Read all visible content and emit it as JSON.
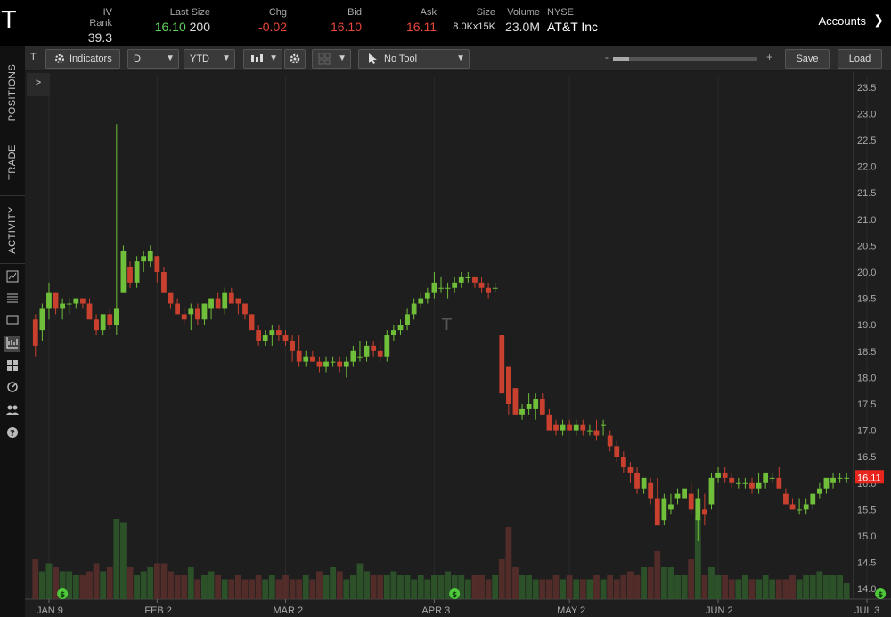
{
  "quote": {
    "symbol": "T",
    "iv_rank_label": "IV Rank",
    "iv_rank": "39.3",
    "last_size_label": "Last Size",
    "last_price": "16.10",
    "last_size": "200",
    "chg_label": "Chg",
    "chg": "-0.02",
    "bid_label": "Bid",
    "bid": "16.10",
    "ask_label": "Ask",
    "ask": "16.11",
    "size_label": "Size",
    "size": "8.0Kx15K",
    "volume_label": "Volume",
    "volume": "23.0M",
    "exchange": "NYSE",
    "company": "AT&T Inc",
    "accounts_label": "Accounts"
  },
  "sidebar": {
    "tabs": [
      "POSITIONS",
      "TRADE",
      "ACTIVITY"
    ],
    "icons": [
      "chart-small-icon",
      "list-icon",
      "tv-icon",
      "chart-icon",
      "grid-icon",
      "refresh-icon",
      "people-icon",
      "help-icon"
    ]
  },
  "toolbar": {
    "symbol": "T",
    "indicators_label": "Indicators",
    "period": "D",
    "range": "YTD",
    "tool_label": "No Tool",
    "zoom_minus": "-",
    "zoom_plus": "+",
    "save_label": "Save",
    "load_label": "Load",
    "expander": ">"
  },
  "chart_data": {
    "type": "candlestick",
    "ylim": [
      13.8,
      23.7
    ],
    "y_ticks": [
      "23.5",
      "23.0",
      "22.5",
      "22.0",
      "21.5",
      "21.0",
      "20.5",
      "20.0",
      "19.5",
      "19.0",
      "18.5",
      "18.0",
      "17.5",
      "17.0",
      "16.5",
      "16.0",
      "15.5",
      "15.0",
      "14.5",
      "14.0"
    ],
    "x_ticks": [
      {
        "label": "JAN 9",
        "i": 2
      },
      {
        "label": "FEB 2",
        "i": 18
      },
      {
        "label": "MAR 2",
        "i": 37
      },
      {
        "label": "APR 3",
        "i": 59
      },
      {
        "label": "MAY 2",
        "i": 79
      },
      {
        "label": "JUN 2",
        "i": 101
      },
      {
        "label": "JUL 3",
        "i": 123
      }
    ],
    "last_price_tag": "16.11",
    "watermark": "T",
    "dividend_markers": [
      4,
      62,
      125
    ],
    "candles": [
      [
        19.1,
        19.2,
        18.4,
        18.6,
        0.1
      ],
      [
        18.9,
        19.4,
        18.7,
        19.3,
        0.07
      ],
      [
        19.3,
        19.8,
        19.1,
        19.6,
        0.09
      ],
      [
        19.6,
        19.6,
        19.2,
        19.3,
        0.08
      ],
      [
        19.3,
        19.5,
        19.1,
        19.4,
        0.07
      ],
      [
        19.4,
        19.5,
        19.2,
        19.4,
        0.07
      ],
      [
        19.4,
        19.5,
        19.3,
        19.5,
        0.06
      ],
      [
        19.5,
        19.5,
        19.3,
        19.4,
        0.06
      ],
      [
        19.4,
        19.5,
        19.1,
        19.1,
        0.07
      ],
      [
        19.1,
        19.2,
        18.8,
        18.9,
        0.09
      ],
      [
        18.9,
        19.2,
        18.8,
        19.2,
        0.07
      ],
      [
        19.2,
        19.3,
        18.9,
        19.0,
        0.08
      ],
      [
        19.0,
        22.8,
        18.8,
        19.3,
        0.2
      ],
      [
        19.6,
        20.5,
        19.6,
        20.4,
        0.19
      ],
      [
        20.1,
        20.2,
        19.7,
        19.8,
        0.08
      ],
      [
        19.8,
        20.3,
        19.7,
        20.2,
        0.06
      ],
      [
        20.2,
        20.4,
        20.0,
        20.3,
        0.07
      ],
      [
        20.2,
        20.5,
        20.1,
        20.4,
        0.08
      ],
      [
        20.3,
        20.3,
        19.8,
        20.0,
        0.09
      ],
      [
        20.0,
        20.1,
        19.6,
        19.6,
        0.09
      ],
      [
        19.6,
        19.6,
        19.3,
        19.4,
        0.07
      ],
      [
        19.4,
        19.5,
        19.2,
        19.2,
        0.06
      ],
      [
        19.2,
        19.3,
        19.0,
        19.1,
        0.06
      ],
      [
        19.2,
        19.4,
        18.9,
        19.3,
        0.08
      ],
      [
        19.3,
        19.4,
        19.0,
        19.1,
        0.05
      ],
      [
        19.1,
        19.4,
        19.0,
        19.4,
        0.06
      ],
      [
        19.3,
        19.5,
        19.1,
        19.5,
        0.07
      ],
      [
        19.5,
        19.6,
        19.3,
        19.3,
        0.06
      ],
      [
        19.3,
        19.7,
        19.2,
        19.6,
        0.05
      ],
      [
        19.6,
        19.7,
        19.4,
        19.4,
        0.05
      ],
      [
        19.5,
        19.5,
        19.2,
        19.4,
        0.06
      ],
      [
        19.4,
        19.4,
        19.1,
        19.2,
        0.05
      ],
      [
        19.2,
        19.2,
        18.9,
        18.9,
        0.05
      ],
      [
        18.9,
        19.0,
        18.6,
        18.7,
        0.06
      ],
      [
        18.7,
        18.9,
        18.6,
        18.8,
        0.05
      ],
      [
        18.8,
        19.0,
        18.6,
        18.9,
        0.06
      ],
      [
        18.9,
        19.0,
        18.7,
        18.8,
        0.05
      ],
      [
        18.8,
        18.9,
        18.6,
        18.7,
        0.06
      ],
      [
        18.7,
        18.8,
        18.3,
        18.5,
        0.05
      ],
      [
        18.5,
        18.8,
        18.2,
        18.3,
        0.05
      ],
      [
        18.3,
        18.5,
        18.2,
        18.4,
        0.06
      ],
      [
        18.4,
        18.5,
        18.3,
        18.3,
        0.05
      ],
      [
        18.3,
        18.4,
        18.1,
        18.2,
        0.07
      ],
      [
        18.2,
        18.4,
        18.1,
        18.3,
        0.06
      ],
      [
        18.3,
        18.4,
        18.2,
        18.3,
        0.08
      ],
      [
        18.3,
        18.4,
        18.1,
        18.2,
        0.07
      ],
      [
        18.2,
        18.4,
        18.0,
        18.3,
        0.05
      ],
      [
        18.3,
        18.6,
        18.2,
        18.5,
        0.06
      ],
      [
        18.4,
        18.7,
        18.3,
        18.4,
        0.09
      ],
      [
        18.4,
        18.7,
        18.3,
        18.6,
        0.07
      ],
      [
        18.6,
        18.7,
        18.4,
        18.5,
        0.06
      ],
      [
        18.5,
        18.7,
        18.3,
        18.4,
        0.06
      ],
      [
        18.4,
        18.9,
        18.3,
        18.8,
        0.06
      ],
      [
        18.8,
        19.0,
        18.7,
        18.9,
        0.07
      ],
      [
        18.9,
        19.1,
        18.8,
        19.0,
        0.06
      ],
      [
        19.0,
        19.3,
        18.9,
        19.2,
        0.06
      ],
      [
        19.2,
        19.5,
        19.1,
        19.4,
        0.05
      ],
      [
        19.4,
        19.6,
        19.3,
        19.5,
        0.06
      ],
      [
        19.5,
        19.7,
        19.4,
        19.6,
        0.05
      ],
      [
        19.6,
        20.0,
        19.5,
        19.8,
        0.06
      ],
      [
        19.7,
        19.9,
        19.6,
        19.7,
        0.06
      ],
      [
        19.7,
        19.8,
        19.5,
        19.7,
        0.07
      ],
      [
        19.7,
        19.9,
        19.6,
        19.8,
        0.06
      ],
      [
        19.8,
        20.0,
        19.7,
        19.9,
        0.06
      ],
      [
        19.9,
        20.0,
        19.8,
        19.9,
        0.05
      ],
      [
        19.9,
        19.9,
        19.7,
        19.8,
        0.06
      ],
      [
        19.8,
        19.9,
        19.6,
        19.7,
        0.06
      ],
      [
        19.7,
        19.8,
        19.5,
        19.6,
        0.05
      ],
      [
        19.7,
        19.8,
        19.6,
        19.7,
        0.06
      ],
      [
        18.8,
        18.8,
        17.7,
        17.7,
        0.1
      ],
      [
        18.2,
        18.2,
        17.3,
        17.5,
        0.18
      ],
      [
        17.8,
        17.8,
        17.3,
        17.3,
        0.08
      ],
      [
        17.3,
        17.5,
        17.2,
        17.4,
        0.06
      ],
      [
        17.4,
        17.7,
        17.3,
        17.5,
        0.06
      ],
      [
        17.4,
        17.7,
        17.2,
        17.6,
        0.05
      ],
      [
        17.6,
        17.7,
        17.3,
        17.3,
        0.05
      ],
      [
        17.3,
        17.4,
        17.0,
        17.0,
        0.05
      ],
      [
        17.1,
        17.2,
        16.9,
        17.0,
        0.06
      ],
      [
        17.0,
        17.2,
        16.9,
        17.1,
        0.05
      ],
      [
        17.1,
        17.2,
        17.0,
        17.0,
        0.06
      ],
      [
        17.0,
        17.2,
        16.9,
        17.1,
        0.05
      ],
      [
        17.1,
        17.2,
        16.9,
        17.0,
        0.05
      ],
      [
        17.0,
        17.1,
        16.9,
        17.0,
        0.05
      ],
      [
        17.0,
        17.2,
        16.8,
        16.9,
        0.06
      ],
      [
        17.1,
        17.2,
        16.9,
        17.1,
        0.05
      ],
      [
        16.9,
        17.0,
        16.6,
        16.7,
        0.06
      ],
      [
        16.7,
        16.8,
        16.4,
        16.5,
        0.05
      ],
      [
        16.5,
        16.6,
        16.2,
        16.3,
        0.06
      ],
      [
        16.3,
        16.4,
        16.0,
        16.2,
        0.07
      ],
      [
        16.2,
        16.3,
        15.8,
        15.9,
        0.06
      ],
      [
        15.9,
        16.1,
        15.8,
        16.1,
        0.08
      ],
      [
        16.0,
        16.1,
        15.6,
        15.7,
        0.08
      ],
      [
        15.7,
        16.1,
        15.2,
        15.2,
        0.12
      ],
      [
        15.3,
        15.8,
        15.2,
        15.7,
        0.08
      ],
      [
        15.5,
        15.8,
        15.4,
        15.6,
        0.08
      ],
      [
        15.7,
        15.9,
        15.6,
        15.8,
        0.06
      ],
      [
        15.7,
        15.9,
        15.7,
        15.9,
        0.06
      ],
      [
        15.8,
        16.0,
        15.4,
        15.5,
        0.1
      ],
      [
        15.3,
        15.9,
        14.9,
        15.7,
        0.2
      ],
      [
        15.5,
        15.8,
        15.2,
        15.4,
        0.06
      ],
      [
        15.6,
        16.2,
        15.5,
        16.1,
        0.08
      ],
      [
        16.1,
        16.3,
        16.0,
        16.2,
        0.06
      ],
      [
        16.2,
        16.3,
        16.0,
        16.1,
        0.06
      ],
      [
        16.1,
        16.2,
        15.9,
        16.0,
        0.05
      ],
      [
        16.0,
        16.1,
        15.9,
        16.0,
        0.05
      ],
      [
        16.0,
        16.1,
        15.9,
        16.0,
        0.06
      ],
      [
        16.0,
        16.1,
        15.8,
        15.9,
        0.05
      ],
      [
        15.9,
        16.2,
        15.8,
        16.0,
        0.05
      ],
      [
        16.0,
        16.2,
        15.9,
        16.2,
        0.06
      ],
      [
        16.1,
        16.2,
        16.0,
        16.1,
        0.05
      ],
      [
        16.1,
        16.3,
        15.9,
        15.9,
        0.05
      ],
      [
        15.8,
        15.9,
        15.6,
        15.6,
        0.05
      ],
      [
        15.6,
        15.7,
        15.5,
        15.5,
        0.06
      ],
      [
        15.5,
        15.7,
        15.4,
        15.5,
        0.05
      ],
      [
        15.5,
        15.7,
        15.4,
        15.6,
        0.06
      ],
      [
        15.6,
        15.8,
        15.5,
        15.8,
        0.06
      ],
      [
        15.8,
        16.0,
        15.7,
        15.9,
        0.07
      ],
      [
        15.9,
        16.1,
        15.8,
        16.1,
        0.06
      ],
      [
        16.0,
        16.2,
        15.9,
        16.1,
        0.06
      ],
      [
        16.1,
        16.2,
        16.0,
        16.1,
        0.06
      ],
      [
        16.1,
        16.2,
        16.0,
        16.1,
        0.04
      ]
    ]
  }
}
